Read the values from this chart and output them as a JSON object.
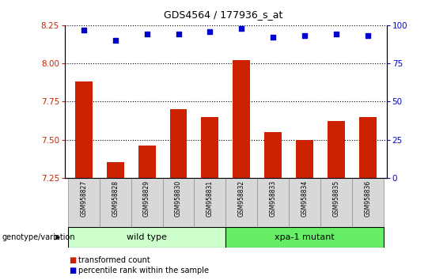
{
  "title": "GDS4564 / 177936_s_at",
  "samples": [
    "GSM958827",
    "GSM958828",
    "GSM958829",
    "GSM958830",
    "GSM958831",
    "GSM958832",
    "GSM958833",
    "GSM958834",
    "GSM958835",
    "GSM958836"
  ],
  "bar_values": [
    7.88,
    7.35,
    7.46,
    7.7,
    7.65,
    8.02,
    7.55,
    7.5,
    7.62,
    7.65
  ],
  "dot_values_right": [
    97,
    90,
    94,
    94,
    96,
    98,
    92,
    93,
    94,
    93
  ],
  "ylim_left": [
    7.25,
    8.25
  ],
  "ylim_right": [
    0,
    100
  ],
  "yticks_left": [
    7.25,
    7.5,
    7.75,
    8.0,
    8.25
  ],
  "yticks_right": [
    0,
    25,
    50,
    75,
    100
  ],
  "bar_color": "#cc2200",
  "dot_color": "#0000cc",
  "wild_type_samples": 5,
  "wild_type_label": "wild type",
  "mutant_label": "xpa-1 mutant",
  "genotype_label": "genotype/variation",
  "legend_bar_label": "transformed count",
  "legend_dot_label": "percentile rank within the sample",
  "wt_color": "#ccffcc",
  "mut_color": "#66ee66",
  "label_color_left": "#cc2200",
  "label_color_right": "#0000cc",
  "background_color": "#ffffff"
}
